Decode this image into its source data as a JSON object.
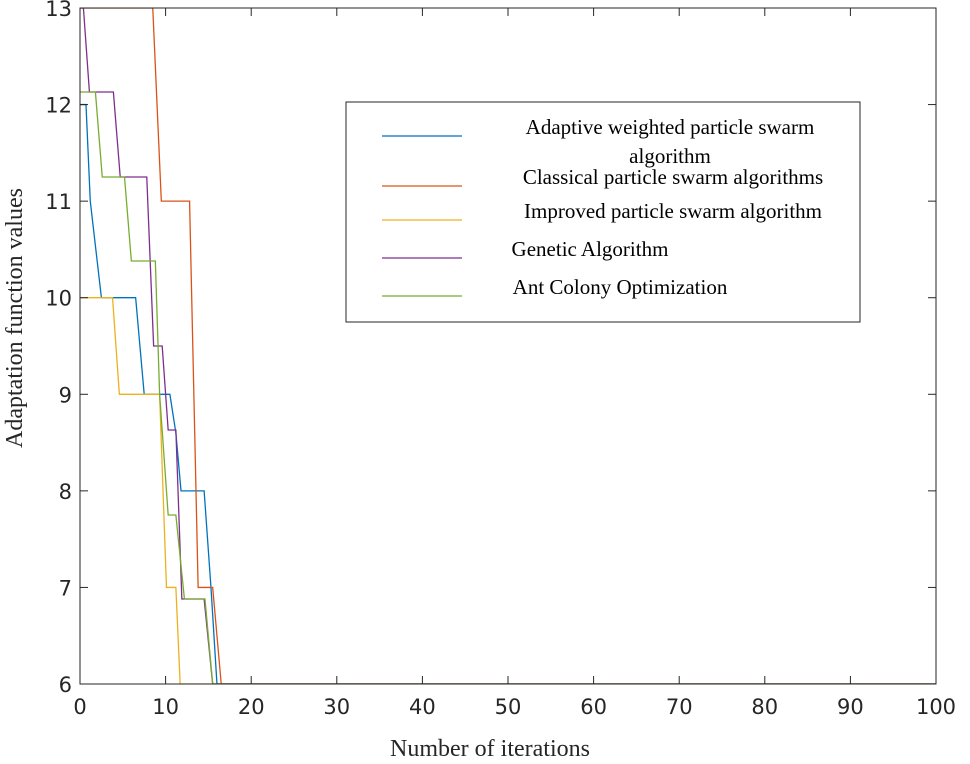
{
  "chart_data": {
    "type": "line",
    "title": "",
    "xlabel": "Number of iterations",
    "ylabel": "Adaptation function values",
    "xlim": [
      0,
      100
    ],
    "ylim": [
      6,
      13
    ],
    "xticks": [
      0,
      10,
      20,
      30,
      40,
      50,
      60,
      70,
      80,
      90,
      100
    ],
    "yticks": [
      6,
      7,
      8,
      9,
      10,
      11,
      12,
      13
    ],
    "grid": false,
    "legend_position": "top-right",
    "series": [
      {
        "name": "Adaptive weighted particle swarm algorithm",
        "name_lines": [
          "Adaptive weighted particle swarm",
          "algorithm"
        ],
        "color": "#0072BD",
        "x": [
          0,
          0.7,
          1.2,
          2.5,
          6.5,
          7.5,
          10.5,
          11.2,
          11.8,
          14.5,
          15.3,
          16,
          100
        ],
        "y": [
          12,
          12,
          11,
          10,
          10,
          9,
          9,
          8.6,
          8,
          8,
          7,
          6,
          6
        ]
      },
      {
        "name": "Classical particle swarm algorithms",
        "name_lines": [
          "Classical particle swarm algorithms"
        ],
        "color": "#D95319",
        "x": [
          0,
          8.5,
          9.5,
          12.8,
          13.8,
          15.5,
          16.5,
          100
        ],
        "y": [
          13,
          13,
          11,
          11,
          7,
          7,
          6,
          6
        ],
        "truncated_top": true
      },
      {
        "name": "Improved particle swarm algorithm",
        "name_lines": [
          "Improved particle swarm algorithm"
        ],
        "color": "#EDB120",
        "x": [
          0,
          3.8,
          4.6,
          9.3,
          10.1,
          11.2,
          11.7,
          100
        ],
        "y": [
          10,
          10,
          9,
          9,
          7,
          7,
          6,
          6
        ]
      },
      {
        "name": "Genetic Algorithm",
        "name_lines": [
          "Genetic Algorithm"
        ],
        "color": "#7E2F8E",
        "x": [
          0,
          0.4,
          1.1,
          3.9,
          4.7,
          7.8,
          8.6,
          9.6,
          10.3,
          11.2,
          11.9,
          14.5,
          15.5,
          100
        ],
        "y": [
          13,
          13,
          12.13,
          12.13,
          11.25,
          11.25,
          9.5,
          9.5,
          8.63,
          8.63,
          6.88,
          6.88,
          6,
          6
        ],
        "truncated_top": true
      },
      {
        "name": "Ant Colony Optimization",
        "name_lines": [
          "Ant Colony Optimization"
        ],
        "color": "#77AC30",
        "x": [
          0,
          1.8,
          2.6,
          5.2,
          6,
          8.8,
          9.3,
          10.3,
          11.2,
          12.2,
          14.6,
          15.5,
          100
        ],
        "y": [
          12.13,
          12.13,
          11.25,
          11.25,
          10.38,
          10.38,
          9,
          7.75,
          7.75,
          6.88,
          6.88,
          6,
          6
        ]
      }
    ]
  }
}
